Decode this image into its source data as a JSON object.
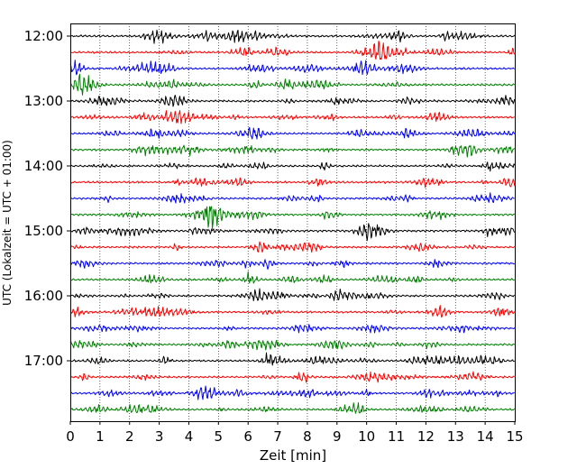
{
  "chart_data": {
    "type": "line",
    "title": "",
    "xlabel": "Zeit  [min]",
    "ylabel": "UTC (Lokalzeit = UTC + 01:00)",
    "xlim": [
      0,
      15
    ],
    "x_ticks": [
      "0",
      "1",
      "2",
      "3",
      "4",
      "5",
      "6",
      "7",
      "8",
      "9",
      "10",
      "11",
      "12",
      "13",
      "14",
      "15"
    ],
    "y_ticks": [
      "12:00",
      "13:00",
      "14:00",
      "15:00",
      "16:00",
      "17:00"
    ],
    "trace_interval_min": 15,
    "traces_per_hour": 4,
    "hours_shown": 6,
    "grid": "vertical dotted lines at each minute",
    "series_colors": [
      "#000000",
      "#ff0000",
      "#0000ff",
      "#008000"
    ]
  }
}
